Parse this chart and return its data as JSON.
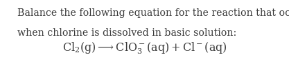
{
  "line1": "Balance the following equation for the reaction that occurs",
  "line2": "when chlorine is dissolved in basic solution:",
  "bg_color": "#ffffff",
  "text_color": "#3a3a3a",
  "font_size_body": 10.2,
  "font_size_eq": 11.5,
  "fig_width": 4.17,
  "fig_height": 0.93,
  "dpi": 100
}
